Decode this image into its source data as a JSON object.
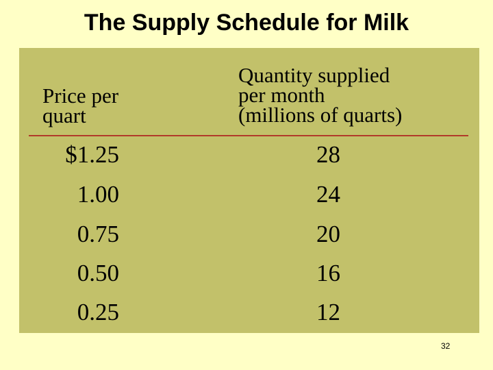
{
  "slide": {
    "title": "The Supply Schedule for Milk",
    "page_number": "32"
  },
  "table": {
    "headers": {
      "price": [
        "Price per",
        "quart"
      ],
      "quantity": [
        "Quantity supplied",
        "per month",
        "(millions of quarts)"
      ]
    },
    "rows": [
      {
        "price": "$1.25",
        "quantity": "28"
      },
      {
        "price": "1.00",
        "quantity": "24"
      },
      {
        "price": "0.75",
        "quantity": "20"
      },
      {
        "price": "0.50",
        "quantity": "16"
      },
      {
        "price": "0.25",
        "quantity": "12"
      }
    ]
  },
  "colors": {
    "background": "#ffffc6",
    "panel": "#c2c16a",
    "rule": "#b13a2a"
  }
}
